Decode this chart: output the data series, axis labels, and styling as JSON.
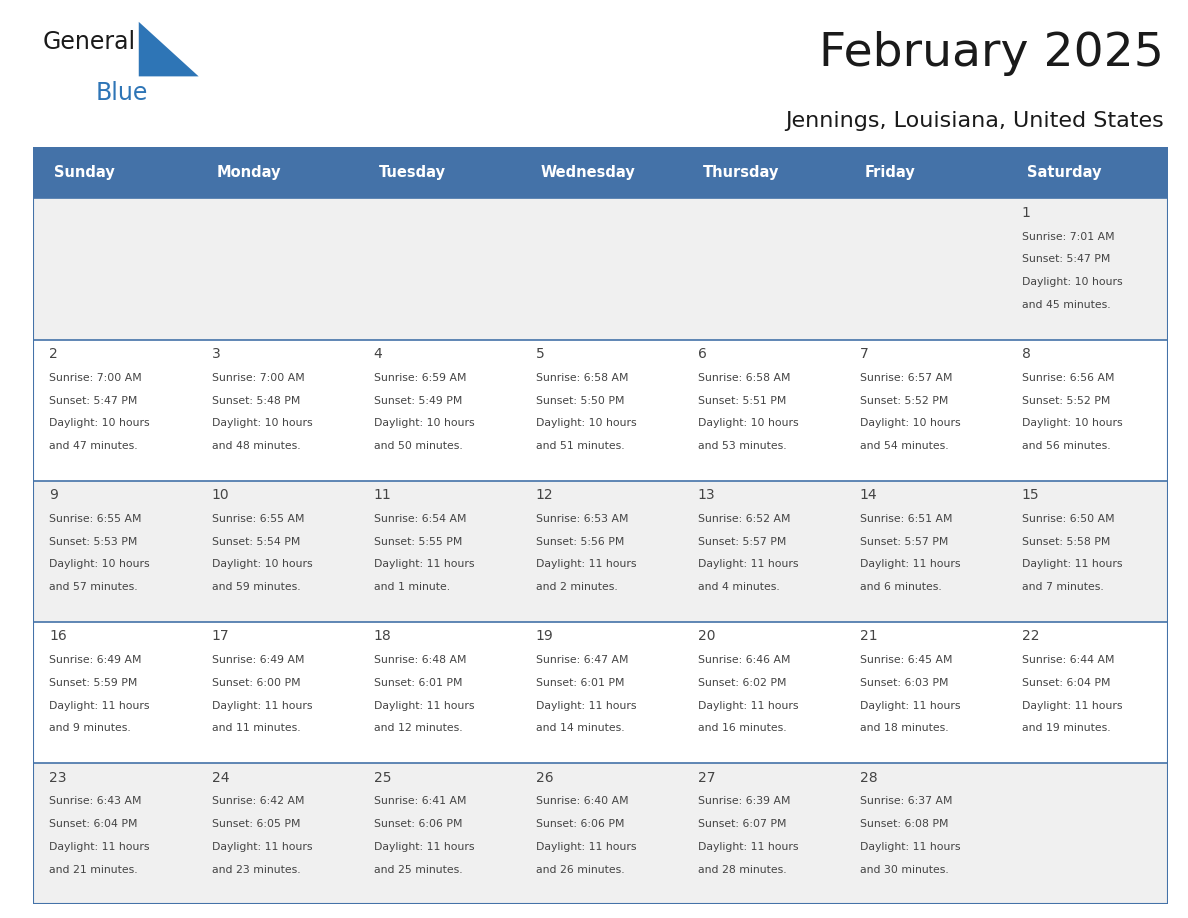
{
  "title": "February 2025",
  "subtitle": "Jennings, Louisiana, United States",
  "header_bg": "#4472a8",
  "header_text_color": "#ffffff",
  "cell_bg_row0": "#f0f0f0",
  "cell_bg_row1": "#ffffff",
  "cell_bg_row2": "#f0f0f0",
  "cell_bg_row3": "#ffffff",
  "cell_bg_row4": "#f0f0f0",
  "border_color": "#4472a8",
  "text_color": "#444444",
  "day_headers": [
    "Sunday",
    "Monday",
    "Tuesday",
    "Wednesday",
    "Thursday",
    "Friday",
    "Saturday"
  ],
  "days": [
    {
      "day": 1,
      "col": 6,
      "row": 0,
      "sunrise": "7:01 AM",
      "sunset": "5:47 PM",
      "daylight": "10 hours",
      "daylight2": "and 45 minutes."
    },
    {
      "day": 2,
      "col": 0,
      "row": 1,
      "sunrise": "7:00 AM",
      "sunset": "5:47 PM",
      "daylight": "10 hours",
      "daylight2": "and 47 minutes."
    },
    {
      "day": 3,
      "col": 1,
      "row": 1,
      "sunrise": "7:00 AM",
      "sunset": "5:48 PM",
      "daylight": "10 hours",
      "daylight2": "and 48 minutes."
    },
    {
      "day": 4,
      "col": 2,
      "row": 1,
      "sunrise": "6:59 AM",
      "sunset": "5:49 PM",
      "daylight": "10 hours",
      "daylight2": "and 50 minutes."
    },
    {
      "day": 5,
      "col": 3,
      "row": 1,
      "sunrise": "6:58 AM",
      "sunset": "5:50 PM",
      "daylight": "10 hours",
      "daylight2": "and 51 minutes."
    },
    {
      "day": 6,
      "col": 4,
      "row": 1,
      "sunrise": "6:58 AM",
      "sunset": "5:51 PM",
      "daylight": "10 hours",
      "daylight2": "and 53 minutes."
    },
    {
      "day": 7,
      "col": 5,
      "row": 1,
      "sunrise": "6:57 AM",
      "sunset": "5:52 PM",
      "daylight": "10 hours",
      "daylight2": "and 54 minutes."
    },
    {
      "day": 8,
      "col": 6,
      "row": 1,
      "sunrise": "6:56 AM",
      "sunset": "5:52 PM",
      "daylight": "10 hours",
      "daylight2": "and 56 minutes."
    },
    {
      "day": 9,
      "col": 0,
      "row": 2,
      "sunrise": "6:55 AM",
      "sunset": "5:53 PM",
      "daylight": "10 hours",
      "daylight2": "and 57 minutes."
    },
    {
      "day": 10,
      "col": 1,
      "row": 2,
      "sunrise": "6:55 AM",
      "sunset": "5:54 PM",
      "daylight": "10 hours",
      "daylight2": "and 59 minutes."
    },
    {
      "day": 11,
      "col": 2,
      "row": 2,
      "sunrise": "6:54 AM",
      "sunset": "5:55 PM",
      "daylight": "11 hours",
      "daylight2": "and 1 minute."
    },
    {
      "day": 12,
      "col": 3,
      "row": 2,
      "sunrise": "6:53 AM",
      "sunset": "5:56 PM",
      "daylight": "11 hours",
      "daylight2": "and 2 minutes."
    },
    {
      "day": 13,
      "col": 4,
      "row": 2,
      "sunrise": "6:52 AM",
      "sunset": "5:57 PM",
      "daylight": "11 hours",
      "daylight2": "and 4 minutes."
    },
    {
      "day": 14,
      "col": 5,
      "row": 2,
      "sunrise": "6:51 AM",
      "sunset": "5:57 PM",
      "daylight": "11 hours",
      "daylight2": "and 6 minutes."
    },
    {
      "day": 15,
      "col": 6,
      "row": 2,
      "sunrise": "6:50 AM",
      "sunset": "5:58 PM",
      "daylight": "11 hours",
      "daylight2": "and 7 minutes."
    },
    {
      "day": 16,
      "col": 0,
      "row": 3,
      "sunrise": "6:49 AM",
      "sunset": "5:59 PM",
      "daylight": "11 hours",
      "daylight2": "and 9 minutes."
    },
    {
      "day": 17,
      "col": 1,
      "row": 3,
      "sunrise": "6:49 AM",
      "sunset": "6:00 PM",
      "daylight": "11 hours",
      "daylight2": "and 11 minutes."
    },
    {
      "day": 18,
      "col": 2,
      "row": 3,
      "sunrise": "6:48 AM",
      "sunset": "6:01 PM",
      "daylight": "11 hours",
      "daylight2": "and 12 minutes."
    },
    {
      "day": 19,
      "col": 3,
      "row": 3,
      "sunrise": "6:47 AM",
      "sunset": "6:01 PM",
      "daylight": "11 hours",
      "daylight2": "and 14 minutes."
    },
    {
      "day": 20,
      "col": 4,
      "row": 3,
      "sunrise": "6:46 AM",
      "sunset": "6:02 PM",
      "daylight": "11 hours",
      "daylight2": "and 16 minutes."
    },
    {
      "day": 21,
      "col": 5,
      "row": 3,
      "sunrise": "6:45 AM",
      "sunset": "6:03 PM",
      "daylight": "11 hours",
      "daylight2": "and 18 minutes."
    },
    {
      "day": 22,
      "col": 6,
      "row": 3,
      "sunrise": "6:44 AM",
      "sunset": "6:04 PM",
      "daylight": "11 hours",
      "daylight2": "and 19 minutes."
    },
    {
      "day": 23,
      "col": 0,
      "row": 4,
      "sunrise": "6:43 AM",
      "sunset": "6:04 PM",
      "daylight": "11 hours",
      "daylight2": "and 21 minutes."
    },
    {
      "day": 24,
      "col": 1,
      "row": 4,
      "sunrise": "6:42 AM",
      "sunset": "6:05 PM",
      "daylight": "11 hours",
      "daylight2": "and 23 minutes."
    },
    {
      "day": 25,
      "col": 2,
      "row": 4,
      "sunrise": "6:41 AM",
      "sunset": "6:06 PM",
      "daylight": "11 hours",
      "daylight2": "and 25 minutes."
    },
    {
      "day": 26,
      "col": 3,
      "row": 4,
      "sunrise": "6:40 AM",
      "sunset": "6:06 PM",
      "daylight": "11 hours",
      "daylight2": "and 26 minutes."
    },
    {
      "day": 27,
      "col": 4,
      "row": 4,
      "sunrise": "6:39 AM",
      "sunset": "6:07 PM",
      "daylight": "11 hours",
      "daylight2": "and 28 minutes."
    },
    {
      "day": 28,
      "col": 5,
      "row": 4,
      "sunrise": "6:37 AM",
      "sunset": "6:08 PM",
      "daylight": "11 hours",
      "daylight2": "and 30 minutes."
    }
  ],
  "num_rows": 5,
  "num_cols": 7,
  "logo_text_general": "General",
  "logo_text_blue": "Blue",
  "logo_triangle_color": "#2e75b6"
}
